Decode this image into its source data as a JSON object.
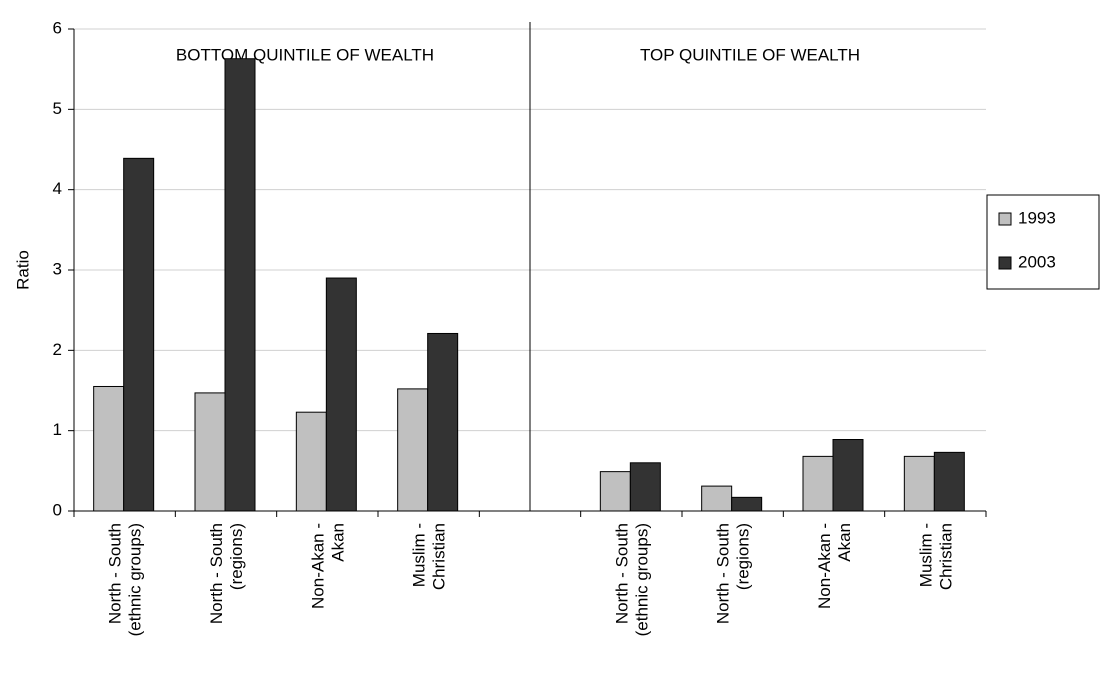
{
  "chart_data": {
    "type": "bar",
    "y_label": "Ratio",
    "annotations": [
      "BOTTOM QUINTILE OF WEALTH",
      "TOP QUINTILE OF WEALTH"
    ],
    "categories": [
      "North - South\n(ethnic groups)",
      "North - South\n(regions)",
      "Non-Akan -\nAkan",
      "Muslim -\nChristian",
      null,
      "North - South\n(ethnic groups)",
      "North - South\n(regions)",
      "Non-Akan -\nAkan",
      "Muslim -\nChristian"
    ],
    "series": [
      {
        "name": "1993",
        "color": "#c0c0c0",
        "values": [
          1.55,
          1.47,
          1.23,
          1.52,
          null,
          0.49,
          0.31,
          0.68,
          0.68
        ]
      },
      {
        "name": "2003",
        "color": "#333333",
        "values": [
          4.39,
          5.63,
          2.9,
          2.21,
          null,
          0.6,
          0.17,
          0.89,
          0.73
        ]
      }
    ],
    "ylim": [
      0,
      6
    ],
    "yticks": [
      0,
      1,
      2,
      3,
      4,
      5,
      6
    ],
    "grid": true,
    "legend": "right"
  }
}
